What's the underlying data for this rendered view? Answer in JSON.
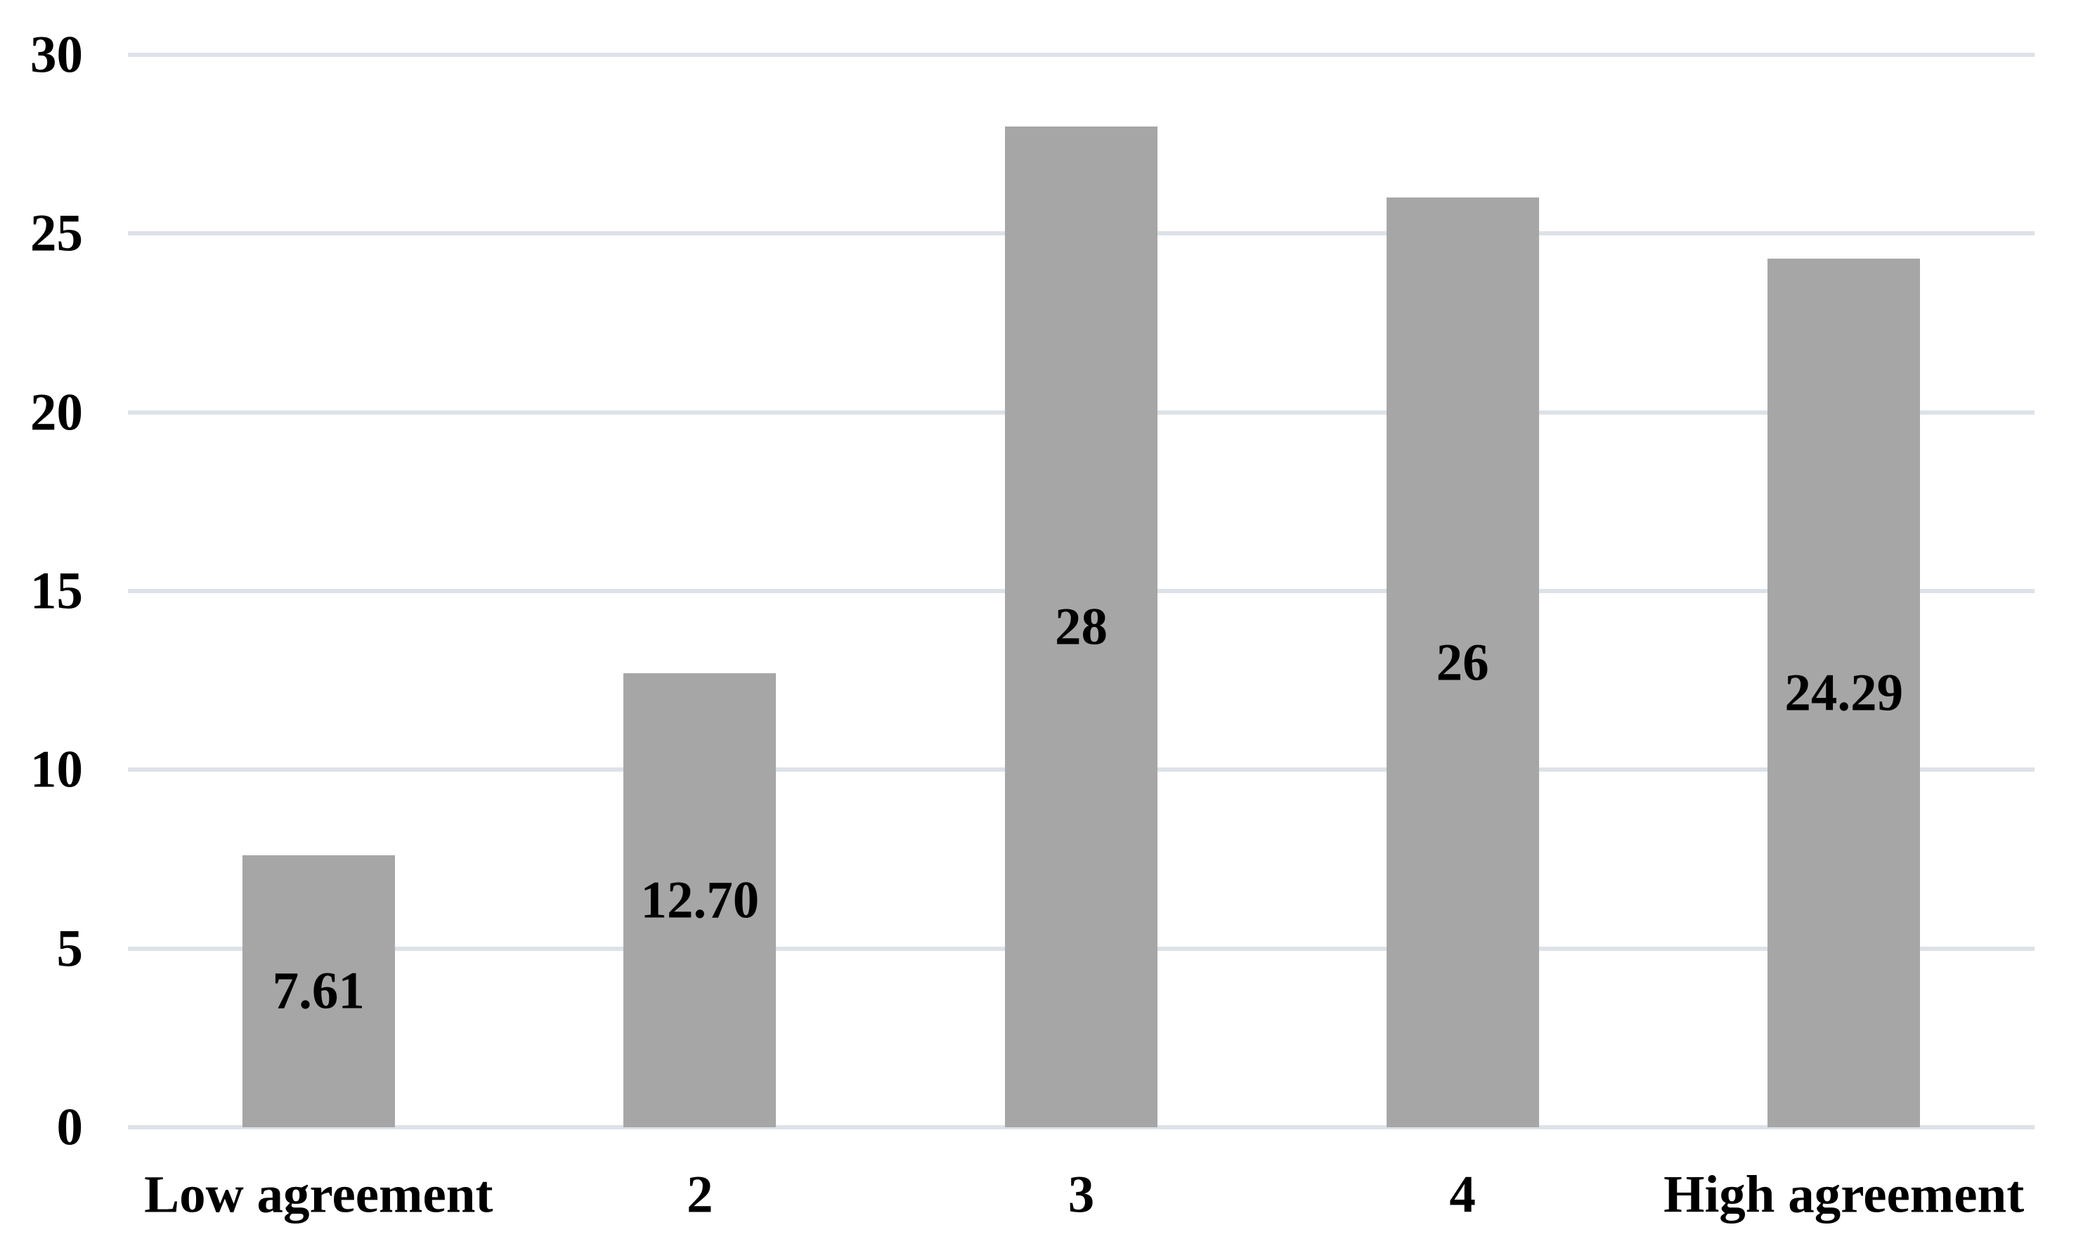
{
  "chart": {
    "background_color": "#ffffff",
    "bar_color": "#a6a6a6",
    "gridline_color": "#dde2e8",
    "text_color": "#000000"
  },
  "chart_data": {
    "type": "bar",
    "title": "",
    "xlabel": "",
    "ylabel": "",
    "categories": [
      "Low agreement",
      "2",
      "3",
      "4",
      "High agreement"
    ],
    "values": [
      7.61,
      12.7,
      28,
      26,
      24.29
    ],
    "data_labels": [
      "7.61",
      "12.70",
      "28",
      "26",
      "24.29"
    ],
    "data_label_position": "center",
    "ylim": [
      0,
      30
    ],
    "yticks": [
      0,
      5,
      10,
      15,
      20,
      25,
      30
    ],
    "ytick_labels": [
      "0",
      "5",
      "10",
      "15",
      "20",
      "25",
      "30"
    ],
    "grid": true,
    "legend": false,
    "bar_width_fraction": 0.4
  }
}
